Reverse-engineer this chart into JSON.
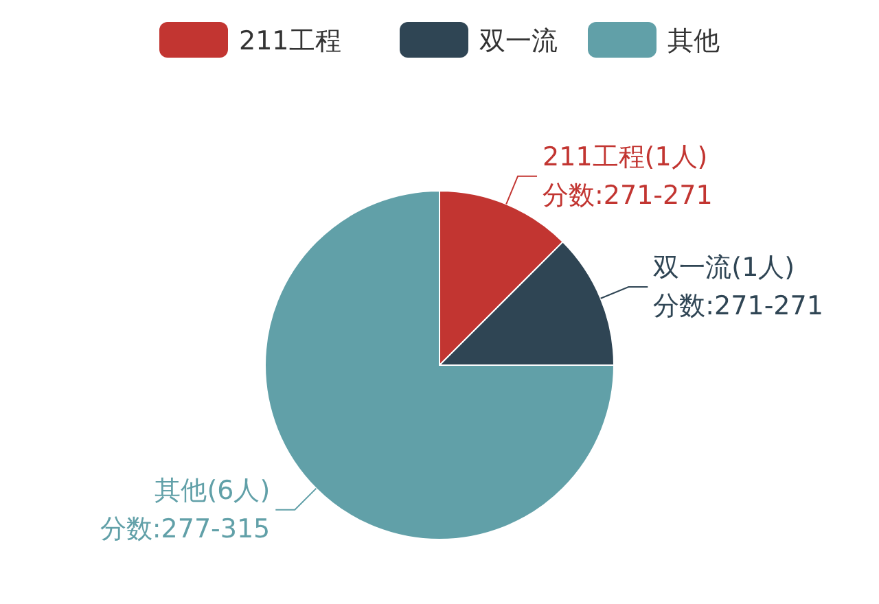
{
  "chart_data": {
    "type": "pie",
    "categories": [
      "211工程",
      "双一流",
      "其他"
    ],
    "values": [
      1,
      1,
      6
    ],
    "colors": [
      "#c23531",
      "#2f4554",
      "#61a0a8"
    ],
    "value_labels": [
      "211工程(1人)\n分数:271-271",
      "双一流(1人)\n分数:271-271",
      "其他(6人)\n分数:277-315"
    ],
    "legend": "top"
  }
}
